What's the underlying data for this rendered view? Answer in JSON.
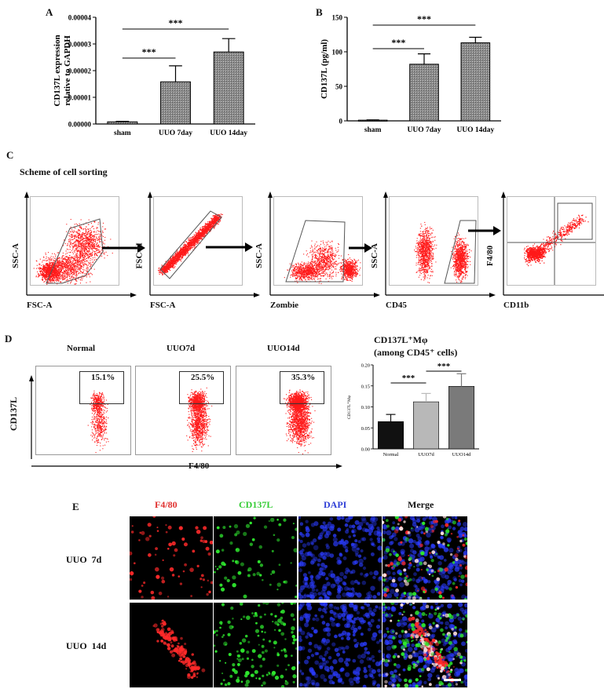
{
  "panels": {
    "A": {
      "letter": "A"
    },
    "B": {
      "letter": "B"
    },
    "C": {
      "letter": "C",
      "title": "Scheme of  cell sorting"
    },
    "D": {
      "letter": "D"
    },
    "E": {
      "letter": "E"
    }
  },
  "chart_data": [
    {
      "id": "A",
      "type": "bar",
      "categories": [
        "sham",
        "UUO 7day",
        "UUO 14day"
      ],
      "values": [
        8e-07,
        1.58e-05,
        2.7e-05
      ],
      "errors": [
        2e-07,
        6e-06,
        5e-06
      ],
      "ylabel": "CD137L expression relative to GAPDH",
      "ylim": [
        0,
        4e-05
      ],
      "yticks": [
        "0.00000",
        "0.00001",
        "0.00002",
        "0.00003",
        "0.00004"
      ],
      "significance": [
        {
          "from": "sham",
          "to": "UUO 7day",
          "label": "***"
        },
        {
          "from": "sham",
          "to": "UUO 14day",
          "label": "***"
        }
      ]
    },
    {
      "id": "B",
      "type": "bar",
      "categories": [
        "sham",
        "UUO 7day",
        "UUO 14day"
      ],
      "values": [
        1,
        82,
        113
      ],
      "errors": [
        0.5,
        15,
        8
      ],
      "ylabel": "CD137L (pg/ml)",
      "ylim": [
        0,
        150
      ],
      "yticks": [
        "0",
        "50",
        "100",
        "150"
      ],
      "significance": [
        {
          "from": "sham",
          "to": "UUO 7day",
          "label": "***"
        },
        {
          "from": "sham",
          "to": "UUO 14day",
          "label": "***"
        }
      ]
    },
    {
      "id": "D",
      "type": "bar",
      "title_line1": "CD137L⁺Mφ",
      "title_line2": "(among  CD45⁺ cells)",
      "categories": [
        "Normal",
        "UUO7d",
        "UUO14d"
      ],
      "values": [
        0.065,
        0.112,
        0.149
      ],
      "errors": [
        0.017,
        0.02,
        0.03
      ],
      "colors": [
        "#111111",
        "#b8b8b8",
        "#7a7a7a"
      ],
      "ylabel": "CD137L⁺Mφ",
      "ylim": [
        0,
        0.2
      ],
      "yticks": [
        "0.00",
        "0.05",
        "0.10",
        "0.15",
        "0.20"
      ],
      "significance": [
        {
          "from": "Normal",
          "to": "UUO7d",
          "label": "***"
        },
        {
          "from": "UUO7d",
          "to": "UUO14d",
          "label": "***"
        }
      ]
    }
  ],
  "sorting": {
    "plots": [
      {
        "y": "SSC-A",
        "x": "FSC-A"
      },
      {
        "y": "FSC-H",
        "x": "FSC-A"
      },
      {
        "y": "SSC-A",
        "x": "Zombie"
      },
      {
        "y": "SSC-A",
        "x": "CD45"
      },
      {
        "y": "F4/80",
        "x": "CD11b"
      }
    ]
  },
  "facs_d": {
    "y_axis": "CD137L",
    "x_axis": "F4/80",
    "samples": [
      {
        "name": "Normal",
        "pct": "15.1%"
      },
      {
        "name": "UUO7d",
        "pct": "25.5%"
      },
      {
        "name": "UUO14d",
        "pct": "35.3%"
      }
    ]
  },
  "imaging": {
    "columns": [
      {
        "label": "F4/80",
        "color": "#e0302e"
      },
      {
        "label": "CD137L",
        "color": "#33cc33"
      },
      {
        "label": "DAPI",
        "color": "#2f3fd6"
      },
      {
        "label": "Merge",
        "color": "#111111"
      }
    ],
    "rows": [
      "UUO  7d",
      "UUO  14d"
    ]
  }
}
